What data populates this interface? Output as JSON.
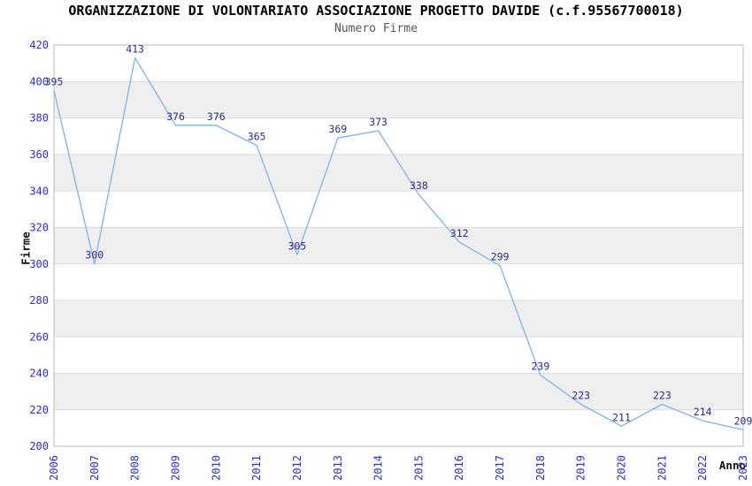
{
  "chart_data": {
    "type": "line",
    "title": "ORGANIZZAZIONE DI VOLONTARIATO ASSOCIAZIONE PROGETTO DAVIDE (c.f.95567700018)",
    "subtitle": "Numero Firme",
    "xlabel": "Anno",
    "ylabel": "Firme",
    "categories": [
      "2006",
      "2007",
      "2008",
      "2009",
      "2010",
      "2011",
      "2012",
      "2013",
      "2014",
      "2015",
      "2016",
      "2017",
      "2018",
      "2019",
      "2020",
      "2021",
      "2022",
      "2023"
    ],
    "values": [
      395,
      300,
      413,
      376,
      376,
      365,
      305,
      369,
      373,
      338,
      312,
      299,
      239,
      223,
      211,
      223,
      214,
      209
    ],
    "ylim": [
      200,
      420
    ],
    "ytick_step": 20,
    "yticks": [
      200,
      220,
      240,
      260,
      280,
      300,
      320,
      340,
      360,
      380,
      400,
      420
    ],
    "grid": true,
    "legend_position": "none",
    "data_labels_shown": true,
    "colors": {
      "line": "#7eb3e8",
      "tick_label": "#2d2dcc",
      "data_label": "#2b2b8a",
      "band": "#efefef",
      "gridline": "#dcdcdc",
      "plot_border": "#b8b8b8",
      "title": "#000000",
      "subtitle": "#565656",
      "axis_title": "#111111",
      "background": "#ffffff"
    }
  }
}
